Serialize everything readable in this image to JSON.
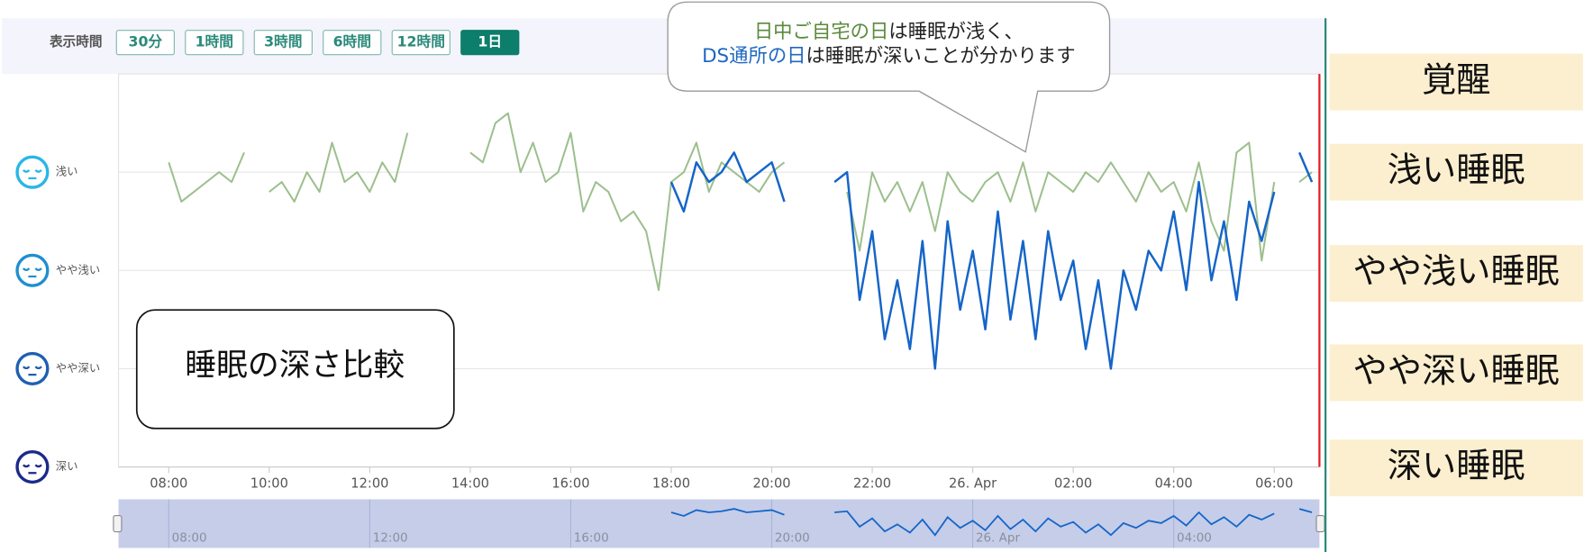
{
  "toolbar": {
    "label": "表示時間",
    "buttons": [
      "30分",
      "1時間",
      "3時間",
      "6時間",
      "12時間",
      "1日"
    ],
    "active": 5
  },
  "chart_data": {
    "type": "line",
    "x": [
      8,
      8.25,
      8.5,
      8.75,
      9,
      9.25,
      9.5,
      9.75,
      10,
      10.25,
      10.5,
      10.75,
      11,
      11.25,
      11.5,
      11.75,
      12,
      12.25,
      12.5,
      12.75,
      13,
      13.25,
      13.5,
      13.75,
      14,
      14.25,
      14.5,
      14.75,
      15,
      15.25,
      15.5,
      15.75,
      16,
      16.25,
      16.5,
      16.75,
      17,
      17.25,
      17.5,
      17.75,
      18,
      18.25,
      18.5,
      18.75,
      19,
      19.25,
      19.5,
      19.75,
      20,
      20.25,
      20.5,
      20.75,
      21,
      21.25,
      21.5,
      21.75,
      22,
      22.25,
      22.5,
      22.75,
      23,
      23.25,
      23.5,
      23.75,
      24,
      24.25,
      24.5,
      24.75,
      25,
      25.25,
      25.5,
      25.75,
      26,
      26.25,
      26.5,
      26.75,
      27,
      27.25,
      27.5,
      27.75,
      28,
      28.25,
      28.5,
      28.75,
      29,
      29.25,
      29.5,
      29.75,
      30,
      30.25,
      30.5,
      30.75
    ],
    "series": [
      {
        "name": "日中ご自宅の日",
        "color": "#9dbf8e",
        "values": [
          3.1,
          2.7,
          2.8,
          2.9,
          3.0,
          2.9,
          3.2,
          null,
          2.8,
          2.9,
          2.7,
          3.0,
          2.8,
          3.3,
          2.9,
          3.0,
          2.8,
          3.1,
          2.9,
          3.4,
          null,
          null,
          null,
          null,
          3.2,
          3.1,
          3.5,
          3.6,
          3.0,
          3.3,
          2.9,
          3.0,
          3.4,
          2.6,
          2.9,
          2.8,
          2.5,
          2.6,
          2.4,
          1.8,
          2.9,
          3.0,
          3.3,
          2.8,
          3.1,
          3.0,
          2.9,
          2.8,
          3.0,
          3.1,
          null,
          null,
          null,
          null,
          2.8,
          2.2,
          3.0,
          2.7,
          2.9,
          2.6,
          2.9,
          2.4,
          3.0,
          2.8,
          2.7,
          2.9,
          3.0,
          2.7,
          3.1,
          2.6,
          3.0,
          2.9,
          2.8,
          3.0,
          2.9,
          3.1,
          2.9,
          2.7,
          3.0,
          2.8,
          2.9,
          2.6,
          3.1,
          2.5,
          2.2,
          3.2,
          3.3,
          2.1,
          2.9,
          null,
          2.9,
          3.0
        ]
      },
      {
        "name": "DS通所の日",
        "color": "#1565c8",
        "values": [
          null,
          null,
          null,
          null,
          null,
          null,
          null,
          null,
          null,
          null,
          null,
          null,
          null,
          null,
          null,
          null,
          null,
          null,
          null,
          null,
          null,
          null,
          null,
          null,
          null,
          null,
          null,
          null,
          null,
          null,
          null,
          null,
          null,
          null,
          null,
          null,
          null,
          null,
          null,
          null,
          2.9,
          2.6,
          3.1,
          2.9,
          3.0,
          3.2,
          2.9,
          3.0,
          3.1,
          2.7,
          null,
          null,
          null,
          2.9,
          3.0,
          1.7,
          2.4,
          1.3,
          1.9,
          1.2,
          2.3,
          1.0,
          2.5,
          1.6,
          2.2,
          1.4,
          2.6,
          1.5,
          2.3,
          1.3,
          2.4,
          1.7,
          2.1,
          1.2,
          1.9,
          1.0,
          2.0,
          1.6,
          2.2,
          2.0,
          2.6,
          1.8,
          2.9,
          1.9,
          2.5,
          1.7,
          2.7,
          2.3,
          2.8,
          null,
          3.2,
          2.9
        ]
      }
    ],
    "xlim": [
      7,
      30.9
    ],
    "xticks": [
      {
        "value": 8,
        "label": "08:00"
      },
      {
        "value": 10,
        "label": "10:00"
      },
      {
        "value": 12,
        "label": "12:00"
      },
      {
        "value": 14,
        "label": "14:00"
      },
      {
        "value": 16,
        "label": "16:00"
      },
      {
        "value": 18,
        "label": "18:00"
      },
      {
        "value": 20,
        "label": "20:00"
      },
      {
        "value": 22,
        "label": "22:00"
      },
      {
        "value": 24,
        "label": "26. Apr"
      },
      {
        "value": 26,
        "label": "02:00"
      },
      {
        "value": 28,
        "label": "04:00"
      },
      {
        "value": 30,
        "label": "06:00"
      }
    ],
    "ylim": [
      0,
      4
    ],
    "yticks": [
      {
        "value": 0,
        "label": "深い"
      },
      {
        "value": 1,
        "label": "やや深い"
      },
      {
        "value": 2,
        "label": "やや浅い"
      },
      {
        "value": 3,
        "label": "浅い"
      }
    ],
    "grid": true,
    "navigator": {
      "series": 1
    }
  },
  "callout": {
    "line1_rest": "は睡眠が浅く、",
    "line2_rest": "は睡眠が深いことが分かります"
  },
  "caption": "睡眠の深さ比較",
  "depth_labels": [
    "覚醒",
    "浅い睡眠",
    "やや浅い睡眠",
    "やや深い睡眠",
    "深い睡眠"
  ]
}
